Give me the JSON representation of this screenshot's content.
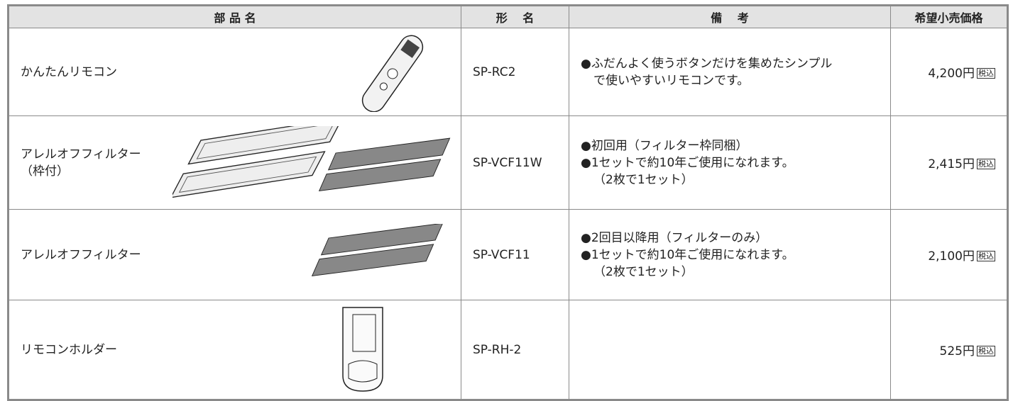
{
  "table": {
    "headers": [
      "部 品 名",
      "形　 名",
      "備　 考",
      "希望小売価格"
    ],
    "rows": [
      {
        "name": [
          "かんたんリモコン"
        ],
        "model": "SP-RC2",
        "notes": [
          "●ふだんよく使うボタンだけを集めたシンプル",
          "で使いやすいリモコンです。"
        ],
        "price": "4,200円",
        "tax": "税込"
      },
      {
        "name": [
          "アレルオフフィルター",
          "（枠付）"
        ],
        "model": "SP-VCF11W",
        "notes": [
          "●初回用（フィルター枠同梱）",
          "●1セットで約10年ご使用になれます。",
          "（2枚で1セット）"
        ],
        "price": "2,415円",
        "tax": "税込"
      },
      {
        "name": [
          "アレルオフフィルター"
        ],
        "model": "SP-VCF11",
        "notes": [
          "●2回目以降用（フィルターのみ）",
          "●1セットで約10年ご使用になれます。",
          "（2枚で1セット）"
        ],
        "price": "2,100円",
        "tax": "税込"
      },
      {
        "name": [
          "リモコンホルダー"
        ],
        "model": "SP-RH-2",
        "price": "525円",
        "tax": "税込"
      }
    ]
  }
}
